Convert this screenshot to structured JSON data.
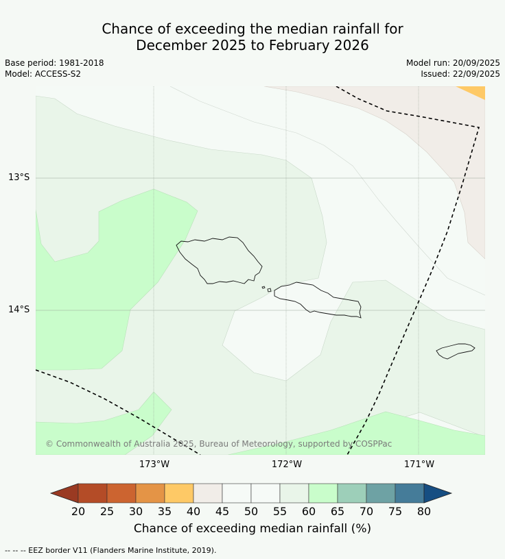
{
  "title_line1": "Chance of exceeding the median rainfall for",
  "title_line2": "December 2025 to February 2026",
  "base_period": "Base period: 1981-2018",
  "model": "Model: ACCESS-S2",
  "model_run": "Model run: 20/09/2025",
  "issued": "Issued: 22/09/2025",
  "copyright": "© Commonwealth of Australia 2025, Bureau of Meteorology, supported by COSPPac",
  "lat_labels": [
    "13°S",
    "14°S"
  ],
  "lon_labels": [
    "173°W",
    "172°W",
    "171°W"
  ],
  "colorbar": {
    "title": "Chance of exceeding median rainfall (%)",
    "ticks": [
      "20",
      "25",
      "30",
      "35",
      "40",
      "45",
      "50",
      "55",
      "60",
      "65",
      "70",
      "75",
      "80"
    ],
    "colors": [
      "#9a3a22",
      "#b44c27",
      "#cc6430",
      "#e49446",
      "#fec966",
      "#f1ede8",
      "#f6faf7",
      "#f6faf7",
      "#e9f5e9",
      "#c9fdcb",
      "#9dcfb9",
      "#6ea2a4",
      "#457c99",
      "#164e82"
    ]
  },
  "footnote": "--  --  -- EEZ border V11 (Flanders Marine Institute, 2019)."
}
